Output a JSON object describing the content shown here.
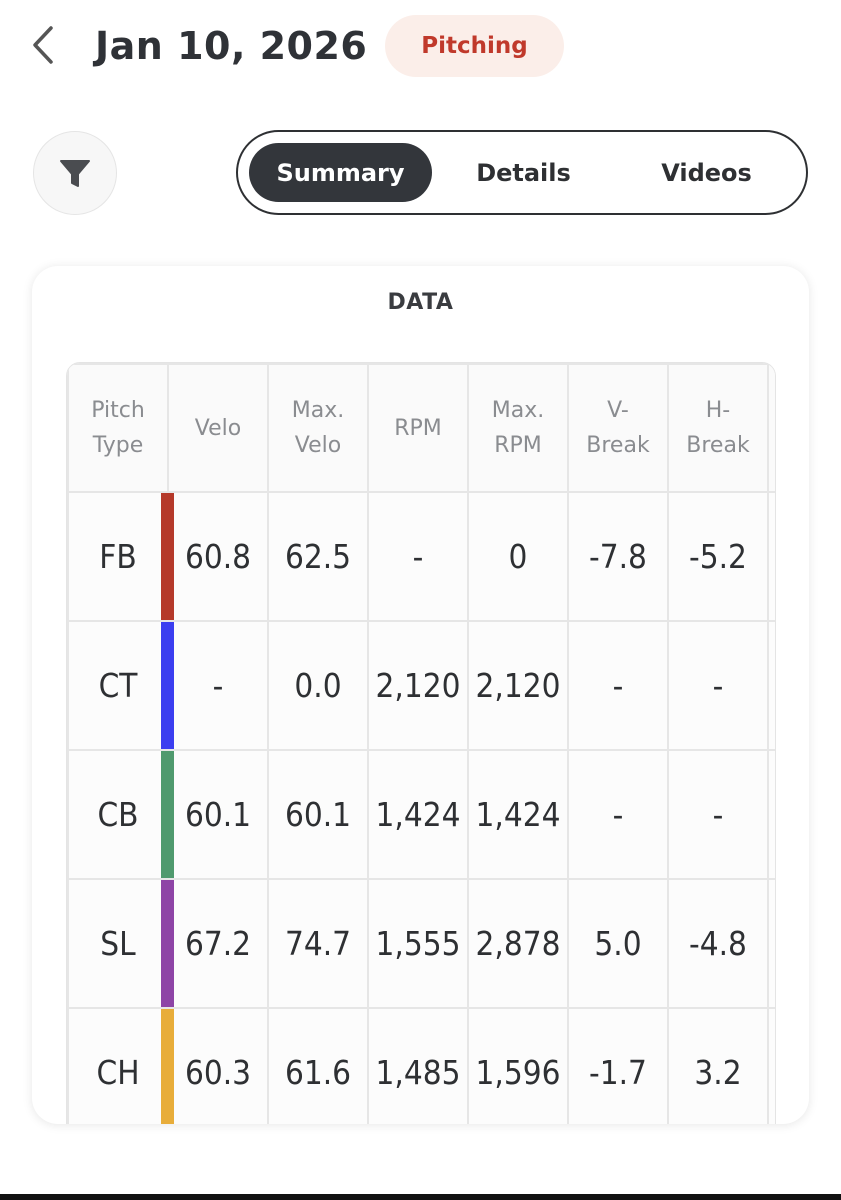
{
  "header": {
    "title": "Jan 10, 2026",
    "badge": "Pitching"
  },
  "tabs": [
    {
      "label": "Summary",
      "active": true
    },
    {
      "label": "Details",
      "active": false
    },
    {
      "label": "Videos",
      "active": false
    }
  ],
  "card": {
    "title": "DATA"
  },
  "table": {
    "columns": [
      {
        "line1": "Pitch",
        "line2": "Type"
      },
      {
        "line1": "Velo",
        "line2": ""
      },
      {
        "line1": "Max.",
        "line2": "Velo"
      },
      {
        "line1": "RPM",
        "line2": ""
      },
      {
        "line1": "Max.",
        "line2": "RPM"
      },
      {
        "line1": "V-",
        "line2": "Break"
      },
      {
        "line1": "H-",
        "line2": "Break"
      }
    ],
    "rows": [
      {
        "type": "FB",
        "color": "#b5392a",
        "values": [
          "60.8",
          "62.5",
          "-",
          "0",
          "-7.8",
          "-5.2"
        ]
      },
      {
        "type": "CT",
        "color": "#3b3ef0",
        "values": [
          "-",
          "0.0",
          "2,120",
          "2,120",
          "-",
          "-"
        ]
      },
      {
        "type": "CB",
        "color": "#4f9a6e",
        "values": [
          "60.1",
          "60.1",
          "1,424",
          "1,424",
          "-",
          "-"
        ]
      },
      {
        "type": "SL",
        "color": "#8e44a6",
        "values": [
          "67.2",
          "74.7",
          "1,555",
          "2,878",
          "5.0",
          "-4.8"
        ]
      },
      {
        "type": "CH",
        "color": "#e8ad3a",
        "values": [
          "60.3",
          "61.6",
          "1,485",
          "1,596",
          "-1.7",
          "3.2"
        ]
      }
    ]
  },
  "icons": {
    "back": "chevron-left-icon",
    "filter": "filter-icon"
  },
  "colors": {
    "accent": "#33363b",
    "badge_bg": "#fbeee9",
    "badge_text": "#c0392b"
  }
}
